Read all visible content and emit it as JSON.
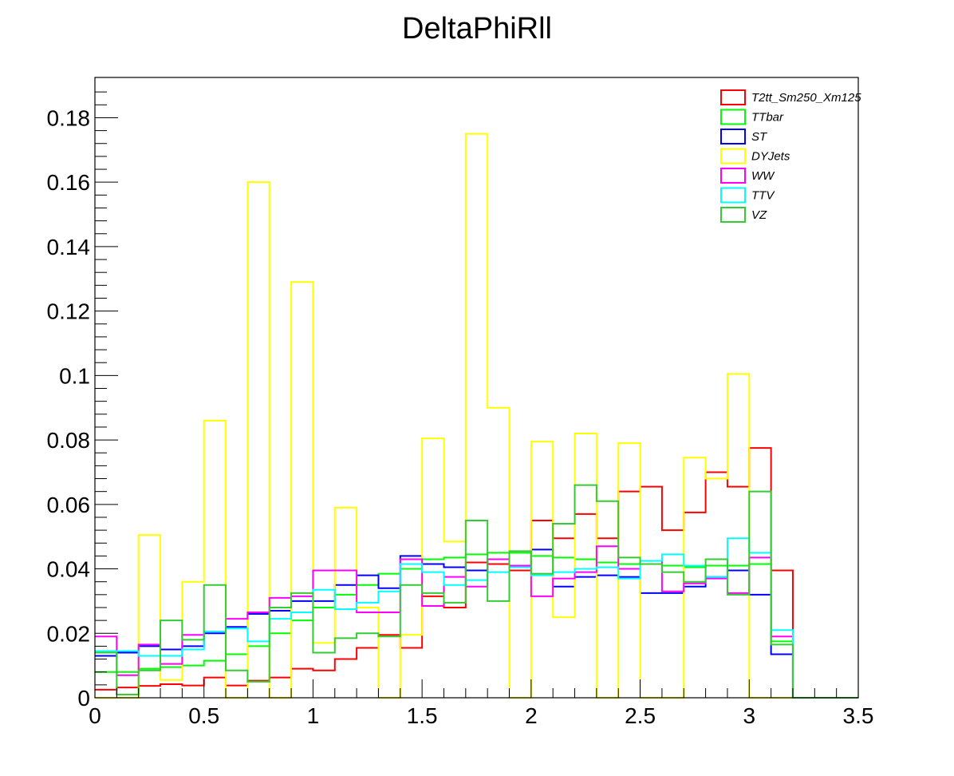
{
  "chart_data": {
    "type": "histogram",
    "title": "DeltaPhiRll",
    "xlabel": "",
    "ylabel": "",
    "xlim": [
      0,
      3.5
    ],
    "ylim": [
      0,
      0.1925
    ],
    "bin_width": 0.1,
    "xticks": [
      0,
      0.5,
      1,
      1.5,
      2,
      2.5,
      3,
      3.5
    ],
    "xtick_labels": [
      "0",
      "0.5",
      "1",
      "1.5",
      "2",
      "2.5",
      "3",
      "3.5"
    ],
    "yticks": [
      0,
      0.02,
      0.04,
      0.06,
      0.08,
      0.1,
      0.12,
      0.14,
      0.16,
      0.18
    ],
    "ytick_labels": [
      "0",
      "0.02",
      "0.04",
      "0.06",
      "0.08",
      "0.1",
      "0.12",
      "0.14",
      "0.16",
      "0.18"
    ],
    "legend_position": "top-right",
    "series": [
      {
        "name": "T2tt_Sm250_Xm125",
        "color": "#ff0000",
        "values": [
          0.0025,
          0.0032,
          0.0037,
          0.0042,
          0.0038,
          0.0063,
          0.0038,
          0.0053,
          0.0063,
          0.009,
          0.0085,
          0.012,
          0.0155,
          0.0195,
          0.0155,
          0.0315,
          0.028,
          0.042,
          0.0415,
          0.0395,
          0.055,
          0.0495,
          0.057,
          0.0495,
          0.064,
          0.0655,
          0.052,
          0.0575,
          0.07,
          0.0655,
          0.0775,
          0.0395,
          0,
          0,
          0
        ]
      },
      {
        "name": "TTbar",
        "color": "#00ff00",
        "values": [
          0.008,
          0.008,
          0.009,
          0.0095,
          0.01,
          0.0115,
          0.0135,
          0.016,
          0.02,
          0.024,
          0.028,
          0.032,
          0.035,
          0.0385,
          0.04,
          0.043,
          0.0435,
          0.0445,
          0.045,
          0.045,
          0.044,
          0.0435,
          0.043,
          0.042,
          0.0415,
          0.0415,
          0.041,
          0.0405,
          0.041,
          0.041,
          0.0415,
          0.0175,
          0,
          0,
          0
        ]
      },
      {
        "name": "ST",
        "color": "#0000ff",
        "values": [
          0.013,
          0.014,
          0.016,
          0.015,
          0.016,
          0.02,
          0.022,
          0.026,
          0.027,
          0.03,
          0.03,
          0.035,
          0.038,
          0.034,
          0.044,
          0.0415,
          0.0405,
          0.0395,
          0.043,
          0.041,
          0.046,
          0.0345,
          0.0375,
          0.038,
          0.0375,
          0.0325,
          0.0325,
          0.0345,
          0.0375,
          0.0395,
          0.032,
          0.0135,
          0,
          0,
          0
        ]
      },
      {
        "name": "DYJets",
        "color": "#ffff00",
        "values": [
          0.0,
          0.0,
          0.0505,
          0.0055,
          0.036,
          0.086,
          0.0,
          0.16,
          0.0,
          0.129,
          0.017,
          0.059,
          0.028,
          0.0,
          0.0195,
          0.0805,
          0.0485,
          0.175,
          0.09,
          0.0,
          0.0795,
          0.025,
          0.082,
          0.0,
          0.079,
          0.0,
          0.0,
          0.0745,
          0.068,
          0.1005,
          0.0,
          0.0,
          0,
          0,
          0
        ]
      },
      {
        "name": "WW",
        "color": "#ff00ff",
        "values": [
          0.019,
          0.007,
          0.0165,
          0.0105,
          0.0195,
          0.0205,
          0.0245,
          0.0265,
          0.031,
          0.0315,
          0.0395,
          0.0395,
          0.0265,
          0.0265,
          0.043,
          0.0285,
          0.0375,
          0.0345,
          0.043,
          0.041,
          0.0315,
          0.037,
          0.039,
          0.047,
          0.04,
          0.0425,
          0.033,
          0.0355,
          0.037,
          0.0325,
          0.0435,
          0.019,
          0,
          0,
          0
        ]
      },
      {
        "name": "TTV",
        "color": "#00ffff",
        "values": [
          0.0145,
          0.0145,
          0.013,
          0.013,
          0.015,
          0.0205,
          0.0215,
          0.0175,
          0.0245,
          0.0265,
          0.0335,
          0.0275,
          0.0295,
          0.033,
          0.0415,
          0.039,
          0.035,
          0.0365,
          0.039,
          0.0405,
          0.038,
          0.039,
          0.04,
          0.0405,
          0.037,
          0.0425,
          0.0445,
          0.041,
          0.0375,
          0.0495,
          0.045,
          0.021,
          0,
          0,
          0
        ]
      },
      {
        "name": "VZ",
        "color": "#33cc33",
        "values": [
          0.014,
          0.001,
          0.0085,
          0.024,
          0.018,
          0.035,
          0.0085,
          0.005,
          0.028,
          0.0325,
          0.014,
          0.0185,
          0.02,
          0.019,
          0.035,
          0.0325,
          0.0295,
          0.055,
          0.03,
          0.0455,
          0.0385,
          0.054,
          0.066,
          0.061,
          0.0435,
          0.0415,
          0.039,
          0.036,
          0.043,
          0.032,
          0.064,
          0.0165,
          0,
          0,
          0
        ]
      }
    ]
  }
}
